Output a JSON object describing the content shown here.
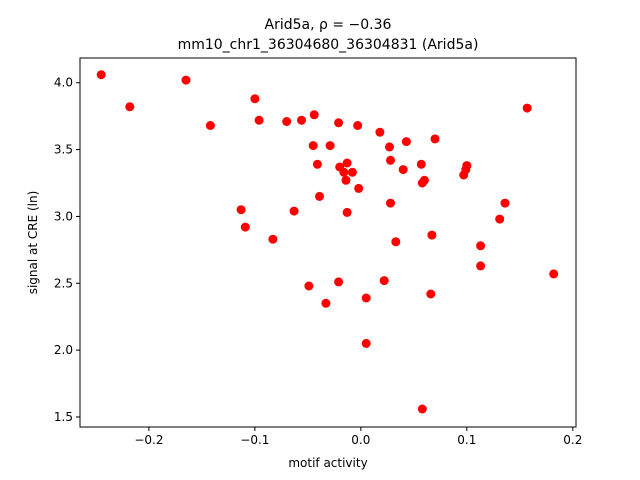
{
  "chart_data": {
    "type": "scatter",
    "title": "Arid5a, ρ = −0.36",
    "subtitle": "mm10_chr1_36304680_36304831 (Arid5a)",
    "xlabel": "motif activity",
    "ylabel": "signal at CRE (ln)",
    "xlim": [
      -0.265,
      0.203
    ],
    "ylim": [
      1.425,
      4.185
    ],
    "xticks": [
      -0.2,
      -0.1,
      0.0,
      0.1,
      0.2
    ],
    "xtick_labels": [
      "−0.2",
      "−0.1",
      "0.0",
      "0.1",
      "0.2"
    ],
    "yticks": [
      1.5,
      2.0,
      2.5,
      3.0,
      3.5,
      4.0
    ],
    "ytick_labels": [
      "1.5",
      "2.0",
      "2.5",
      "3.0",
      "3.5",
      "4.0"
    ],
    "grid": false,
    "marker_color": "#ff0000",
    "points": [
      {
        "x": -0.245,
        "y": 4.06
      },
      {
        "x": -0.218,
        "y": 3.82
      },
      {
        "x": -0.165,
        "y": 4.02
      },
      {
        "x": -0.142,
        "y": 3.68
      },
      {
        "x": -0.1,
        "y": 3.88
      },
      {
        "x": -0.096,
        "y": 3.72
      },
      {
        "x": -0.07,
        "y": 3.71
      },
      {
        "x": -0.056,
        "y": 3.72
      },
      {
        "x": -0.044,
        "y": 3.76
      },
      {
        "x": -0.021,
        "y": 3.7
      },
      {
        "x": -0.003,
        "y": 3.68
      },
      {
        "x": 0.018,
        "y": 3.63
      },
      {
        "x": 0.07,
        "y": 3.58
      },
      {
        "x": 0.157,
        "y": 3.81
      },
      {
        "x": -0.045,
        "y": 3.53
      },
      {
        "x": -0.029,
        "y": 3.53
      },
      {
        "x": 0.027,
        "y": 3.52
      },
      {
        "x": 0.043,
        "y": 3.56
      },
      {
        "x": -0.041,
        "y": 3.39
      },
      {
        "x": -0.013,
        "y": 3.4
      },
      {
        "x": -0.02,
        "y": 3.37
      },
      {
        "x": -0.016,
        "y": 3.33
      },
      {
        "x": -0.008,
        "y": 3.33
      },
      {
        "x": -0.014,
        "y": 3.27
      },
      {
        "x": 0.028,
        "y": 3.42
      },
      {
        "x": 0.04,
        "y": 3.35
      },
      {
        "x": 0.057,
        "y": 3.39
      },
      {
        "x": 0.058,
        "y": 3.25
      },
      {
        "x": 0.06,
        "y": 3.27
      },
      {
        "x": 0.097,
        "y": 3.31
      },
      {
        "x": 0.099,
        "y": 3.35
      },
      {
        "x": 0.1,
        "y": 3.38
      },
      {
        "x": -0.002,
        "y": 3.21
      },
      {
        "x": -0.039,
        "y": 3.15
      },
      {
        "x": -0.113,
        "y": 3.05
      },
      {
        "x": -0.063,
        "y": 3.04
      },
      {
        "x": -0.013,
        "y": 3.03
      },
      {
        "x": 0.028,
        "y": 3.1
      },
      {
        "x": 0.136,
        "y": 3.1
      },
      {
        "x": 0.131,
        "y": 2.98
      },
      {
        "x": -0.109,
        "y": 2.92
      },
      {
        "x": -0.083,
        "y": 2.83
      },
      {
        "x": 0.033,
        "y": 2.81
      },
      {
        "x": 0.067,
        "y": 2.86
      },
      {
        "x": 0.113,
        "y": 2.78
      },
      {
        "x": 0.113,
        "y": 2.63
      },
      {
        "x": 0.182,
        "y": 2.57
      },
      {
        "x": -0.049,
        "y": 2.48
      },
      {
        "x": -0.021,
        "y": 2.51
      },
      {
        "x": 0.022,
        "y": 2.52
      },
      {
        "x": -0.033,
        "y": 2.35
      },
      {
        "x": 0.005,
        "y": 2.39
      },
      {
        "x": 0.066,
        "y": 2.42
      },
      {
        "x": 0.005,
        "y": 2.05
      },
      {
        "x": 0.058,
        "y": 1.56
      }
    ]
  }
}
